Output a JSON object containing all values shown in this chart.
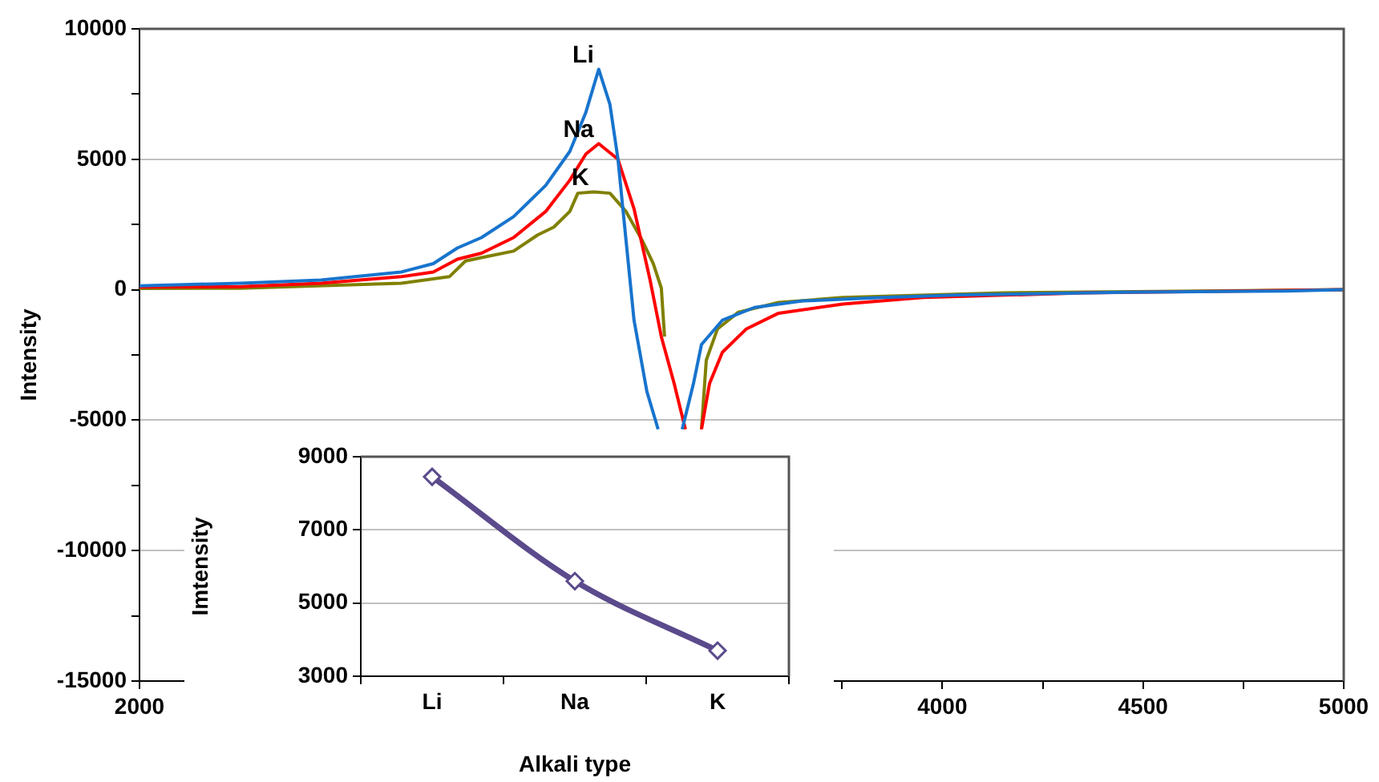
{
  "chart_data": [
    {
      "type": "line",
      "ylabel": "Intensity",
      "xlim": [
        2000,
        5000
      ],
      "ylim": [
        -15000,
        10000
      ],
      "xticks": [
        2000,
        {
          "value": 2250,
          "label": null
        },
        {
          "value": 2500,
          "label": null
        },
        {
          "value": 2750,
          "label": null
        },
        {
          "value": 3000,
          "label": null
        },
        {
          "value": 3250,
          "label": null
        },
        {
          "value": 3500,
          "label": null
        },
        {
          "value": 3750,
          "label": null
        },
        4000,
        {
          "value": 4250,
          "label": null
        },
        4500,
        {
          "value": 4750,
          "label": null
        },
        5000
      ],
      "yticks": [
        -15000,
        {
          "value": -12500,
          "label": null
        },
        -10000,
        {
          "value": -7500,
          "label": null
        },
        -5000,
        {
          "value": -2500,
          "label": null
        },
        0,
        {
          "value": 2500,
          "label": null
        },
        5000,
        {
          "value": 7500,
          "label": null
        },
        10000
      ],
      "grid": "y",
      "legend": false,
      "marker": "none",
      "line_style": "solid",
      "series": [
        {
          "name": "Li",
          "color": "#1874cd",
          "x": [
            2000,
            2252,
            2452,
            2652,
            2732,
            2792,
            2852,
            2932,
            3012,
            3072,
            3112,
            3144,
            3172,
            3192,
            3212,
            3232,
            3264,
            3292,
            3304,
            3352,
            3380,
            3400,
            3452,
            3532,
            3652,
            3852,
            4052,
            4452,
            4852,
            5000
          ],
          "values": [
            150,
            250,
            370,
            680,
            1000,
            1600,
            2000,
            2800,
            4000,
            5300,
            6800,
            8450,
            7100,
            5000,
            1900,
            -1170,
            -3900,
            -5350,
            null,
            -5350,
            -3600,
            -2100,
            -1170,
            -680,
            -430,
            -300,
            -200,
            -100,
            -50,
            0
          ]
        },
        {
          "name": "Na",
          "color": "#ff0000",
          "x": [
            2000,
            2252,
            2452,
            2652,
            2732,
            2792,
            2852,
            2932,
            3012,
            3072,
            3112,
            3144,
            3192,
            3232,
            3272,
            3300,
            3332,
            3360,
            3380,
            3400,
            3420,
            3452,
            3512,
            3592,
            3752,
            3952,
            4352,
            5000
          ],
          "values": [
            100,
            120,
            250,
            500,
            680,
            1170,
            1400,
            2000,
            3000,
            4200,
            5200,
            5600,
            5000,
            3100,
            370,
            -1800,
            -3600,
            -5350,
            null,
            -5350,
            -3600,
            -2400,
            -1500,
            -900,
            -550,
            -300,
            -120,
            0
          ]
        },
        {
          "name": "K",
          "color": "#808000",
          "x": [
            2000,
            2252,
            2652,
            2772,
            2812,
            2852,
            2932,
            2992,
            3032,
            3072,
            3092,
            3132,
            3172,
            3212,
            3252,
            3280,
            3300,
            3308,
            3360,
            3400,
            3412,
            3440,
            3492,
            3592,
            3752,
            4152,
            5000
          ],
          "values": [
            50,
            60,
            250,
            500,
            1100,
            1230,
            1480,
            2100,
            2400,
            3000,
            3700,
            3750,
            3700,
            3000,
            1900,
            1000,
            60,
            -1800,
            null,
            -5350,
            -2700,
            -1500,
            -860,
            -490,
            -300,
            -120,
            0
          ]
        }
      ]
    },
    {
      "type": "line",
      "categories": [
        "Li",
        "Na",
        "K"
      ],
      "values": [
        8450,
        5600,
        3700
      ],
      "color": "#5b4a8c",
      "xlabel": "Alkali type",
      "ylabel": "Imtensity",
      "ylim": [
        3000,
        9000
      ],
      "yticks": [
        3000,
        5000,
        7000,
        9000
      ],
      "grid": "y",
      "legend": false,
      "marker": "diamond",
      "line_style": "solid"
    }
  ]
}
